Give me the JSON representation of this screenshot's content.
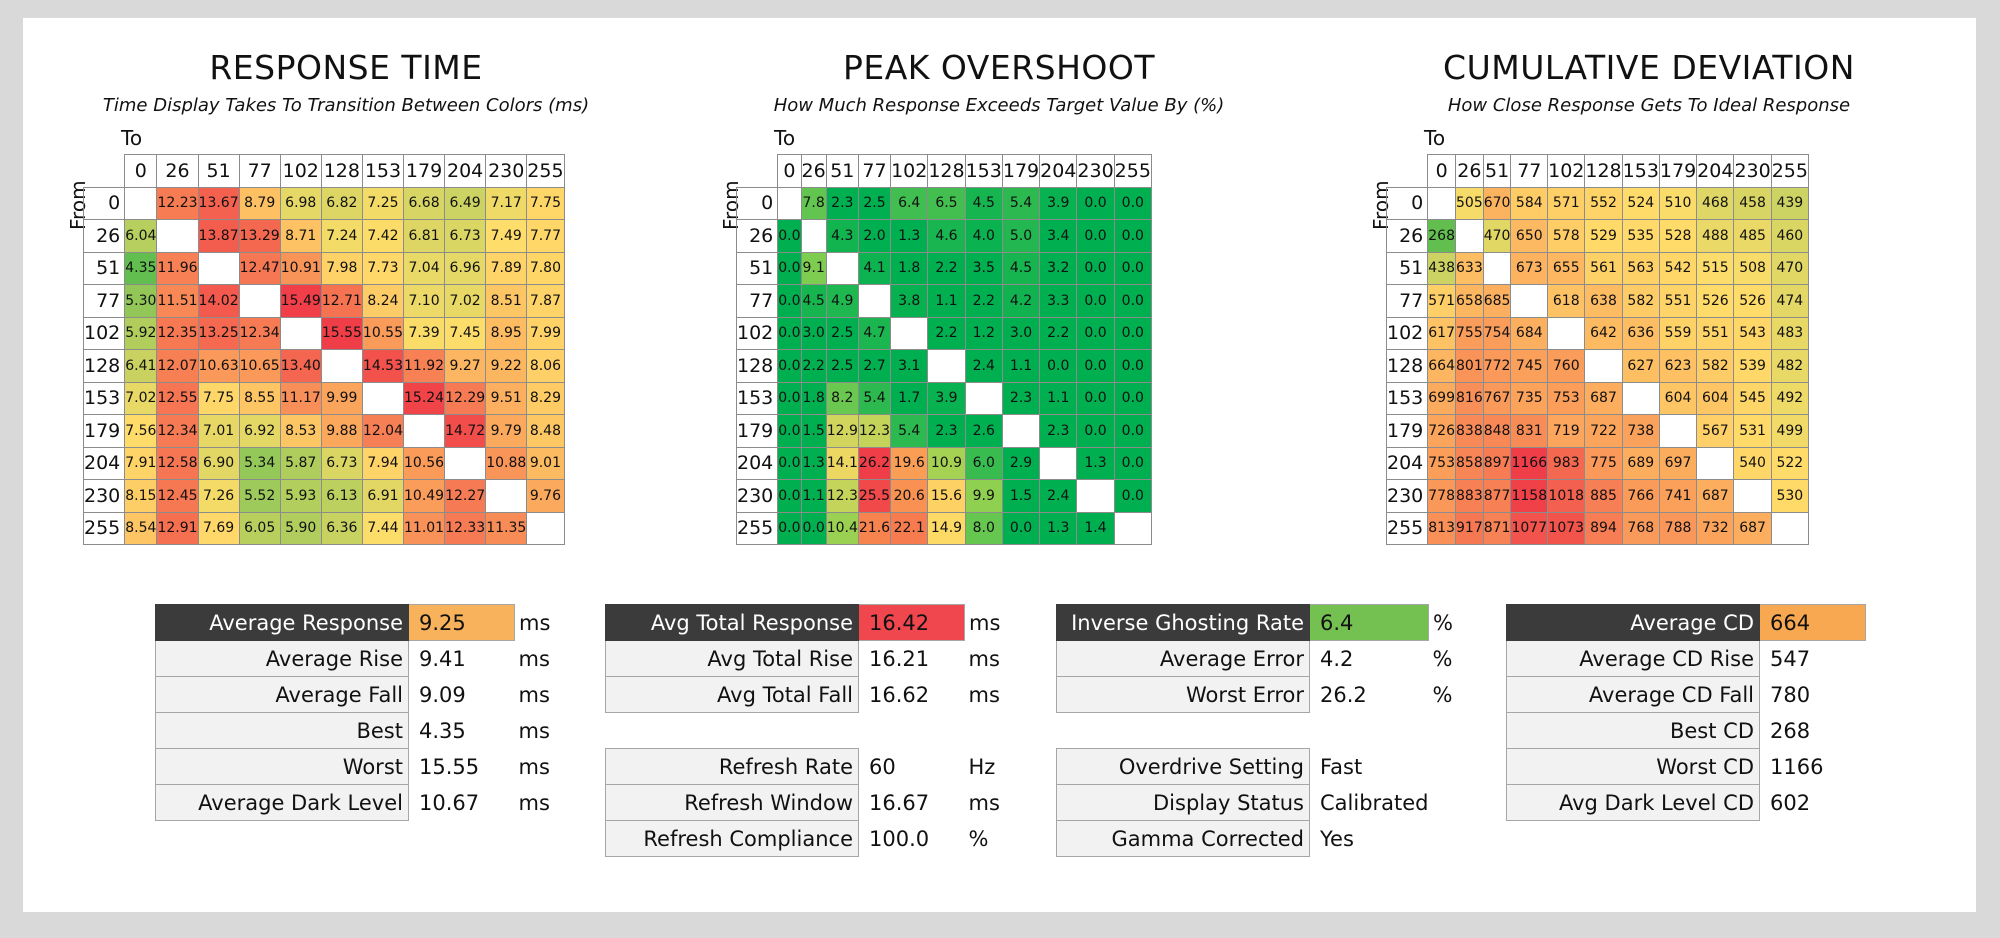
{
  "panels": [
    {
      "title": "RESPONSE TIME",
      "subtitle": "Time Display Takes To Transition Between Colors (ms)",
      "to_label": "To",
      "from_label": "From",
      "levels": [
        "0",
        "26",
        "51",
        "77",
        "102",
        "128",
        "153",
        "179",
        "204",
        "230",
        "255"
      ],
      "scale": {
        "min": 4.35,
        "max": 15.55,
        "mode": "heat"
      },
      "cells": [
        [
          "",
          "12.23",
          "13.67",
          "8.79",
          "6.98",
          "6.82",
          "7.25",
          "6.68",
          "6.49",
          "7.17",
          "7.75"
        ],
        [
          "6.04",
          "",
          "13.87",
          "13.29",
          "8.71",
          "7.24",
          "7.42",
          "6.81",
          "6.73",
          "7.49",
          "7.77"
        ],
        [
          "4.35",
          "11.96",
          "",
          "12.47",
          "10.91",
          "7.98",
          "7.73",
          "7.04",
          "6.96",
          "7.89",
          "7.80"
        ],
        [
          "5.30",
          "11.51",
          "14.02",
          "",
          "15.49",
          "12.71",
          "8.24",
          "7.10",
          "7.02",
          "8.51",
          "7.87"
        ],
        [
          "5.92",
          "12.35",
          "13.25",
          "12.34",
          "",
          "15.55",
          "10.55",
          "7.39",
          "7.45",
          "8.95",
          "7.99"
        ],
        [
          "6.41",
          "12.07",
          "10.63",
          "10.65",
          "13.40",
          "",
          "14.53",
          "11.92",
          "9.27",
          "9.22",
          "8.06"
        ],
        [
          "7.02",
          "12.55",
          "7.75",
          "8.55",
          "11.17",
          "9.99",
          "",
          "15.24",
          "12.29",
          "9.51",
          "8.29"
        ],
        [
          "7.56",
          "12.34",
          "7.01",
          "6.92",
          "8.53",
          "9.88",
          "12.04",
          "",
          "14.72",
          "9.79",
          "8.48"
        ],
        [
          "7.91",
          "12.58",
          "6.90",
          "5.34",
          "5.87",
          "6.73",
          "7.94",
          "10.56",
          "",
          "10.88",
          "9.01"
        ],
        [
          "8.15",
          "12.45",
          "7.26",
          "5.52",
          "5.93",
          "6.13",
          "6.91",
          "10.49",
          "12.27",
          "",
          "9.76"
        ],
        [
          "8.54",
          "12.91",
          "7.69",
          "6.05",
          "5.90",
          "6.36",
          "7.44",
          "11.01",
          "12.33",
          "11.35",
          ""
        ]
      ]
    },
    {
      "title": "PEAK OVERSHOOT",
      "subtitle": "How Much Response Exceeds Target Value By (%)",
      "to_label": "To",
      "from_label": "From",
      "levels": [
        "0",
        "26",
        "51",
        "77",
        "102",
        "128",
        "153",
        "179",
        "204",
        "230",
        "255"
      ],
      "scale": {
        "min": 0,
        "max": 26.2,
        "mode": "overshoot"
      },
      "cells": [
        [
          "",
          "7.8",
          "2.3",
          "2.5",
          "6.4",
          "6.5",
          "4.5",
          "5.4",
          "3.9",
          "0.0",
          "0.0"
        ],
        [
          "0.0",
          "",
          "4.3",
          "2.0",
          "1.3",
          "4.6",
          "4.0",
          "5.0",
          "3.4",
          "0.0",
          "0.0"
        ],
        [
          "0.0",
          "9.1",
          "",
          "4.1",
          "1.8",
          "2.2",
          "3.5",
          "4.5",
          "3.2",
          "0.0",
          "0.0"
        ],
        [
          "0.0",
          "4.5",
          "4.9",
          "",
          "3.8",
          "1.1",
          "2.2",
          "4.2",
          "3.3",
          "0.0",
          "0.0"
        ],
        [
          "0.0",
          "3.0",
          "2.5",
          "4.7",
          "",
          "2.2",
          "1.2",
          "3.0",
          "2.2",
          "0.0",
          "0.0"
        ],
        [
          "0.0",
          "2.2",
          "2.5",
          "2.7",
          "3.1",
          "",
          "2.4",
          "1.1",
          "0.0",
          "0.0",
          "0.0"
        ],
        [
          "0.0",
          "1.8",
          "8.2",
          "5.4",
          "1.7",
          "3.9",
          "",
          "2.3",
          "1.1",
          "0.0",
          "0.0"
        ],
        [
          "0.0",
          "1.5",
          "12.9",
          "12.3",
          "5.4",
          "2.3",
          "2.6",
          "",
          "2.3",
          "0.0",
          "0.0"
        ],
        [
          "0.0",
          "1.3",
          "14.1",
          "26.2",
          "19.6",
          "10.9",
          "6.0",
          "2.9",
          "",
          "1.3",
          "0.0"
        ],
        [
          "0.0",
          "1.1",
          "12.3",
          "25.5",
          "20.6",
          "15.6",
          "9.9",
          "1.5",
          "2.4",
          "",
          "0.0"
        ],
        [
          "0.0",
          "0.0",
          "10.4",
          "21.6",
          "22.1",
          "14.9",
          "8.0",
          "0.0",
          "1.3",
          "1.4",
          ""
        ]
      ]
    },
    {
      "title": "CUMULATIVE DEVIATION",
      "subtitle": "How Close Response Gets To Ideal Response",
      "to_label": "To",
      "from_label": "From",
      "levels": [
        "0",
        "26",
        "51",
        "77",
        "102",
        "128",
        "153",
        "179",
        "204",
        "230",
        "255"
      ],
      "scale": {
        "min": 268,
        "max": 1166,
        "mode": "heat"
      },
      "cells": [
        [
          "",
          "505",
          "670",
          "584",
          "571",
          "552",
          "524",
          "510",
          "468",
          "458",
          "439"
        ],
        [
          "268",
          "",
          "470",
          "650",
          "578",
          "529",
          "535",
          "528",
          "488",
          "485",
          "460"
        ],
        [
          "438",
          "633",
          "",
          "673",
          "655",
          "561",
          "563",
          "542",
          "515",
          "508",
          "470"
        ],
        [
          "571",
          "658",
          "685",
          "",
          "618",
          "638",
          "582",
          "551",
          "526",
          "526",
          "474"
        ],
        [
          "617",
          "755",
          "754",
          "684",
          "",
          "642",
          "636",
          "559",
          "551",
          "543",
          "483"
        ],
        [
          "664",
          "801",
          "772",
          "745",
          "760",
          "",
          "627",
          "623",
          "582",
          "539",
          "482"
        ],
        [
          "699",
          "816",
          "767",
          "735",
          "753",
          "687",
          "",
          "604",
          "604",
          "545",
          "492"
        ],
        [
          "726",
          "838",
          "848",
          "831",
          "719",
          "722",
          "738",
          "",
          "567",
          "531",
          "499"
        ],
        [
          "753",
          "858",
          "897",
          "1166",
          "983",
          "775",
          "689",
          "697",
          "",
          "540",
          "522"
        ],
        [
          "778",
          "883",
          "877",
          "1158",
          "1018",
          "885",
          "766",
          "741",
          "687",
          "",
          "530"
        ],
        [
          "813",
          "917",
          "871",
          "1077",
          "1073",
          "894",
          "768",
          "788",
          "732",
          "687",
          ""
        ]
      ]
    }
  ],
  "stats": [
    {
      "rows": [
        {
          "label": "Average Response",
          "value": "9.25",
          "unit": "ms",
          "header": true,
          "color": "#f8b25c"
        },
        {
          "label": "Average Rise",
          "value": "9.41",
          "unit": "ms"
        },
        {
          "label": "Average Fall",
          "value": "9.09",
          "unit": "ms"
        },
        {
          "label": "Best",
          "value": "4.35",
          "unit": "ms"
        },
        {
          "label": "Worst",
          "value": "15.55",
          "unit": "ms"
        },
        {
          "label": "Average Dark Level",
          "value": "10.67",
          "unit": "ms"
        }
      ]
    },
    {
      "rows": [
        {
          "label": "Avg Total Response",
          "value": "16.42",
          "unit": "ms",
          "header": true,
          "color": "#f0474f"
        },
        {
          "label": "Avg Total Rise",
          "value": "16.21",
          "unit": "ms"
        },
        {
          "label": "Avg Total Fall",
          "value": "16.62",
          "unit": "ms"
        },
        {
          "gap": true
        },
        {
          "label": "Refresh Rate",
          "value": "60",
          "unit": "Hz"
        },
        {
          "label": "Refresh Window",
          "value": "16.67",
          "unit": "ms"
        },
        {
          "label": "Refresh Compliance",
          "value": "100.0",
          "unit": "%"
        }
      ]
    },
    {
      "rows": [
        {
          "label": "Inverse Ghosting Rate",
          "value": "6.4",
          "unit": "%",
          "header": true,
          "color": "#74c050"
        },
        {
          "label": "Average Error",
          "value": "4.2",
          "unit": "%"
        },
        {
          "label": "Worst Error",
          "value": "26.2",
          "unit": "%"
        },
        {
          "gap": true
        },
        {
          "label": "Overdrive Setting",
          "value": "Fast",
          "unit": ""
        },
        {
          "label": "Display Status",
          "value": "Calibrated",
          "unit": ""
        },
        {
          "label": "Gamma Corrected",
          "value": "Yes",
          "unit": ""
        }
      ]
    },
    {
      "rows": [
        {
          "label": "Average CD",
          "value": "664",
          "unit": "",
          "header": true,
          "color": "#f8a850"
        },
        {
          "label": "Average CD Rise",
          "value": "547",
          "unit": ""
        },
        {
          "label": "Average CD Fall",
          "value": "780",
          "unit": ""
        },
        {
          "label": "Best CD",
          "value": "268",
          "unit": ""
        },
        {
          "label": "Worst CD",
          "value": "1166",
          "unit": ""
        },
        {
          "label": "Avg Dark Level CD",
          "value": "602",
          "unit": ""
        }
      ]
    }
  ],
  "chart_data": [
    {
      "type": "heatmap",
      "title": "RESPONSE TIME",
      "subtitle": "Time Display Takes To Transition Between Colors (ms)",
      "xlabel": "To",
      "ylabel": "From",
      "x": [
        0,
        26,
        51,
        77,
        102,
        128,
        153,
        179,
        204,
        230,
        255
      ],
      "y": [
        0,
        26,
        51,
        77,
        102,
        128,
        153,
        179,
        204,
        230,
        255
      ],
      "z": [
        [
          null,
          12.23,
          13.67,
          8.79,
          6.98,
          6.82,
          7.25,
          6.68,
          6.49,
          7.17,
          7.75
        ],
        [
          6.04,
          null,
          13.87,
          13.29,
          8.71,
          7.24,
          7.42,
          6.81,
          6.73,
          7.49,
          7.77
        ],
        [
          4.35,
          11.96,
          null,
          12.47,
          10.91,
          7.98,
          7.73,
          7.04,
          6.96,
          7.89,
          7.8
        ],
        [
          5.3,
          11.51,
          14.02,
          null,
          15.49,
          12.71,
          8.24,
          7.1,
          7.02,
          8.51,
          7.87
        ],
        [
          5.92,
          12.35,
          13.25,
          12.34,
          null,
          15.55,
          10.55,
          7.39,
          7.45,
          8.95,
          7.99
        ],
        [
          6.41,
          12.07,
          10.63,
          10.65,
          13.4,
          null,
          14.53,
          11.92,
          9.27,
          9.22,
          8.06
        ],
        [
          7.02,
          12.55,
          7.75,
          8.55,
          11.17,
          9.99,
          null,
          15.24,
          12.29,
          9.51,
          8.29
        ],
        [
          7.56,
          12.34,
          7.01,
          6.92,
          8.53,
          9.88,
          12.04,
          null,
          14.72,
          9.79,
          8.48
        ],
        [
          7.91,
          12.58,
          6.9,
          5.34,
          5.87,
          6.73,
          7.94,
          10.56,
          null,
          10.88,
          9.01
        ],
        [
          8.15,
          12.45,
          7.26,
          5.52,
          5.93,
          6.13,
          6.91,
          10.49,
          12.27,
          null,
          9.76
        ],
        [
          8.54,
          12.91,
          7.69,
          6.05,
          5.9,
          6.36,
          7.44,
          11.01,
          12.33,
          11.35,
          null
        ]
      ]
    },
    {
      "type": "heatmap",
      "title": "PEAK OVERSHOOT",
      "subtitle": "How Much Response Exceeds Target Value By (%)",
      "xlabel": "To",
      "ylabel": "From",
      "x": [
        0,
        26,
        51,
        77,
        102,
        128,
        153,
        179,
        204,
        230,
        255
      ],
      "y": [
        0,
        26,
        51,
        77,
        102,
        128,
        153,
        179,
        204,
        230,
        255
      ],
      "z": [
        [
          null,
          7.8,
          2.3,
          2.5,
          6.4,
          6.5,
          4.5,
          5.4,
          3.9,
          0.0,
          0.0
        ],
        [
          0.0,
          null,
          4.3,
          2.0,
          1.3,
          4.6,
          4.0,
          5.0,
          3.4,
          0.0,
          0.0
        ],
        [
          0.0,
          9.1,
          null,
          4.1,
          1.8,
          2.2,
          3.5,
          4.5,
          3.2,
          0.0,
          0.0
        ],
        [
          0.0,
          4.5,
          4.9,
          null,
          3.8,
          1.1,
          2.2,
          4.2,
          3.3,
          0.0,
          0.0
        ],
        [
          0.0,
          3.0,
          2.5,
          4.7,
          null,
          2.2,
          1.2,
          3.0,
          2.2,
          0.0,
          0.0
        ],
        [
          0.0,
          2.2,
          2.5,
          2.7,
          3.1,
          null,
          2.4,
          1.1,
          0.0,
          0.0,
          0.0
        ],
        [
          0.0,
          1.8,
          8.2,
          5.4,
          1.7,
          3.9,
          null,
          2.3,
          1.1,
          0.0,
          0.0
        ],
        [
          0.0,
          1.5,
          12.9,
          12.3,
          5.4,
          2.3,
          2.6,
          null,
          2.3,
          0.0,
          0.0
        ],
        [
          0.0,
          1.3,
          14.1,
          26.2,
          19.6,
          10.9,
          6.0,
          2.9,
          null,
          1.3,
          0.0
        ],
        [
          0.0,
          1.1,
          12.3,
          25.5,
          20.6,
          15.6,
          9.9,
          1.5,
          2.4,
          null,
          0.0
        ],
        [
          0.0,
          0.0,
          10.4,
          21.6,
          22.1,
          14.9,
          8.0,
          0.0,
          1.3,
          1.4,
          null
        ]
      ]
    },
    {
      "type": "heatmap",
      "title": "CUMULATIVE DEVIATION",
      "subtitle": "How Close Response Gets To Ideal Response",
      "xlabel": "To",
      "ylabel": "From",
      "x": [
        0,
        26,
        51,
        77,
        102,
        128,
        153,
        179,
        204,
        230,
        255
      ],
      "y": [
        0,
        26,
        51,
        77,
        102,
        128,
        153,
        179,
        204,
        230,
        255
      ],
      "z": [
        [
          null,
          505,
          670,
          584,
          571,
          552,
          524,
          510,
          468,
          458,
          439
        ],
        [
          268,
          null,
          470,
          650,
          578,
          529,
          535,
          528,
          488,
          485,
          460
        ],
        [
          438,
          633,
          null,
          673,
          655,
          561,
          563,
          542,
          515,
          508,
          470
        ],
        [
          571,
          658,
          685,
          null,
          618,
          638,
          582,
          551,
          526,
          526,
          474
        ],
        [
          617,
          755,
          754,
          684,
          null,
          642,
          636,
          559,
          551,
          543,
          483
        ],
        [
          664,
          801,
          772,
          745,
          760,
          null,
          627,
          623,
          582,
          539,
          482
        ],
        [
          699,
          816,
          767,
          735,
          753,
          687,
          null,
          604,
          604,
          545,
          492
        ],
        [
          726,
          838,
          848,
          831,
          719,
          722,
          738,
          null,
          567,
          531,
          499
        ],
        [
          753,
          858,
          897,
          1166,
          983,
          775,
          689,
          697,
          null,
          540,
          522
        ],
        [
          778,
          883,
          877,
          1158,
          1018,
          885,
          766,
          741,
          687,
          null,
          530
        ],
        [
          813,
          917,
          871,
          1077,
          1073,
          894,
          768,
          788,
          732,
          687,
          null
        ]
      ]
    }
  ]
}
